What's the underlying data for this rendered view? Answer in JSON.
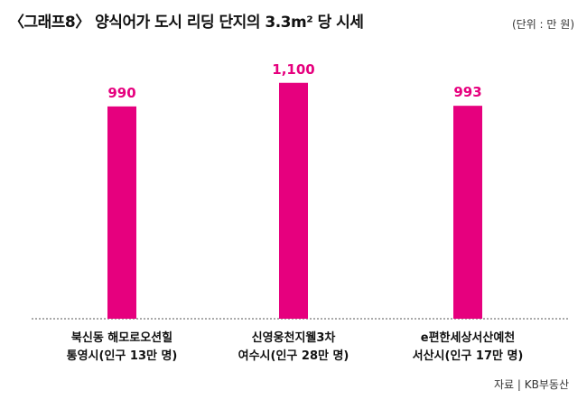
{
  "title": "〈그래프8〉 양식어가 도시 리딩 단지의 3.3m² 당 시세",
  "unit": "(단위 : 만 원)",
  "source": "자료 | KB부동산",
  "colors": {
    "bar": "#e6007e",
    "baseline": "#555555"
  },
  "chart_data": {
    "type": "bar",
    "categories": [
      [
        "북신동 해모로오션힐",
        "통영시(인구 13만 명)"
      ],
      [
        "신영웅천지웰3차",
        "여수시(인구 28만 명)"
      ],
      [
        "e편한세상서산예천",
        "서산시(인구 17만 명)"
      ]
    ],
    "values": [
      990,
      1100,
      993
    ],
    "value_labels": [
      "990",
      "1,100",
      "993"
    ],
    "title": "〈그래프8〉 양식어가 도시 리딩 단지의 3.3m² 당 시세",
    "ylim": [
      0,
      1200
    ],
    "grid": false,
    "legend": "none"
  }
}
